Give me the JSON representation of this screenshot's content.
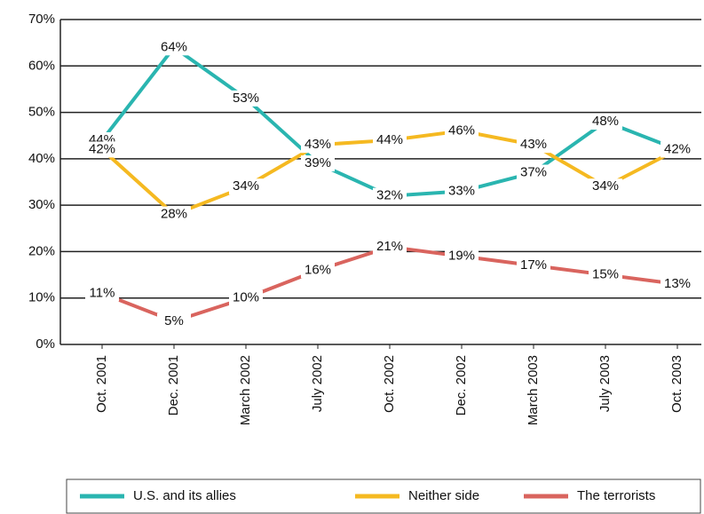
{
  "chart_data": {
    "type": "line",
    "categories": [
      "Oct. 2001",
      "Dec. 2001",
      "March 2002",
      "July 2002",
      "Oct. 2002",
      "Dec. 2002",
      "March 2003",
      "July 2003",
      "Oct. 2003"
    ],
    "series": [
      {
        "name": "U.S. and its allies",
        "color": "#2ab5b0",
        "values": [
          44,
          64,
          53,
          39,
          32,
          33,
          37,
          48,
          42
        ],
        "value_labels": [
          "44%",
          "64%",
          "53%",
          "39%",
          "32%",
          "33%",
          "37%",
          "48%",
          "42%"
        ]
      },
      {
        "name": "Neither side",
        "color": "#f5b921",
        "values": [
          42,
          28,
          34,
          43,
          44,
          46,
          43,
          34,
          42
        ],
        "value_labels": [
          "42%",
          "28%",
          "34%",
          "43%",
          "44%",
          "46%",
          "43%",
          "34%",
          "42%"
        ]
      },
      {
        "name": "The terrorists",
        "color": "#d9645e",
        "values": [
          11,
          5,
          10,
          16,
          21,
          19,
          17,
          15,
          13
        ],
        "value_labels": [
          "11%",
          "5%",
          "10%",
          "16%",
          "21%",
          "19%",
          "17%",
          "15%",
          "13%"
        ]
      }
    ],
    "ylim": [
      0,
      70
    ],
    "yticks": [
      {
        "value": 0,
        "label": "0%"
      },
      {
        "value": 10,
        "label": "10%"
      },
      {
        "value": 20,
        "label": "20%"
      },
      {
        "value": 30,
        "label": "30%"
      },
      {
        "value": 40,
        "label": "40%"
      },
      {
        "value": 50,
        "label": "50%"
      },
      {
        "value": 60,
        "label": "60%"
      },
      {
        "value": 70,
        "label": "70%"
      }
    ],
    "grid": true,
    "legend": "bottom"
  }
}
